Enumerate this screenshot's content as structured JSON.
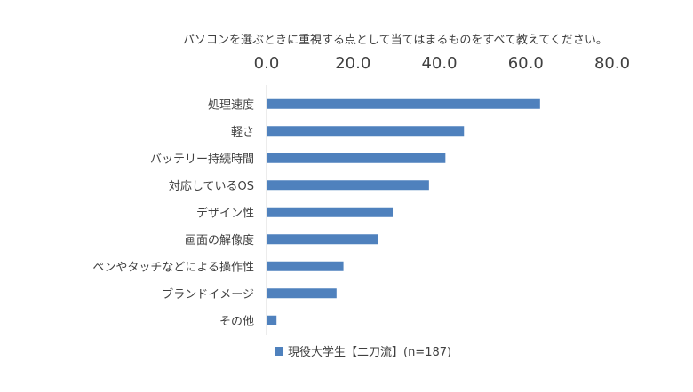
{
  "chart_data": {
    "type": "bar",
    "orientation": "horizontal",
    "title": "パソコンを選ぶときに重視する点として当てはまるものをすべて教えてください。",
    "xlim": [
      0,
      80
    ],
    "xticks": [
      "0.0",
      "20.0",
      "40.0",
      "60.0",
      "80.0"
    ],
    "x_axis_position": "top",
    "grid": false,
    "legend_position": "bottom",
    "categories": [
      "処理速度",
      "軽さ",
      "バッテリー持続時間",
      "対応しているOS",
      "デザイン性",
      "画面の解像度",
      "ペンやタッチなどによる操作性",
      "ブランドイメージ",
      "その他"
    ],
    "series": [
      {
        "name": "現役大学生【二刀流】(n=187)",
        "color": "#4F81BD",
        "values": [
          63.1,
          45.5,
          41.2,
          37.4,
          29.0,
          25.7,
          17.6,
          16.0,
          2.1
        ]
      }
    ]
  }
}
